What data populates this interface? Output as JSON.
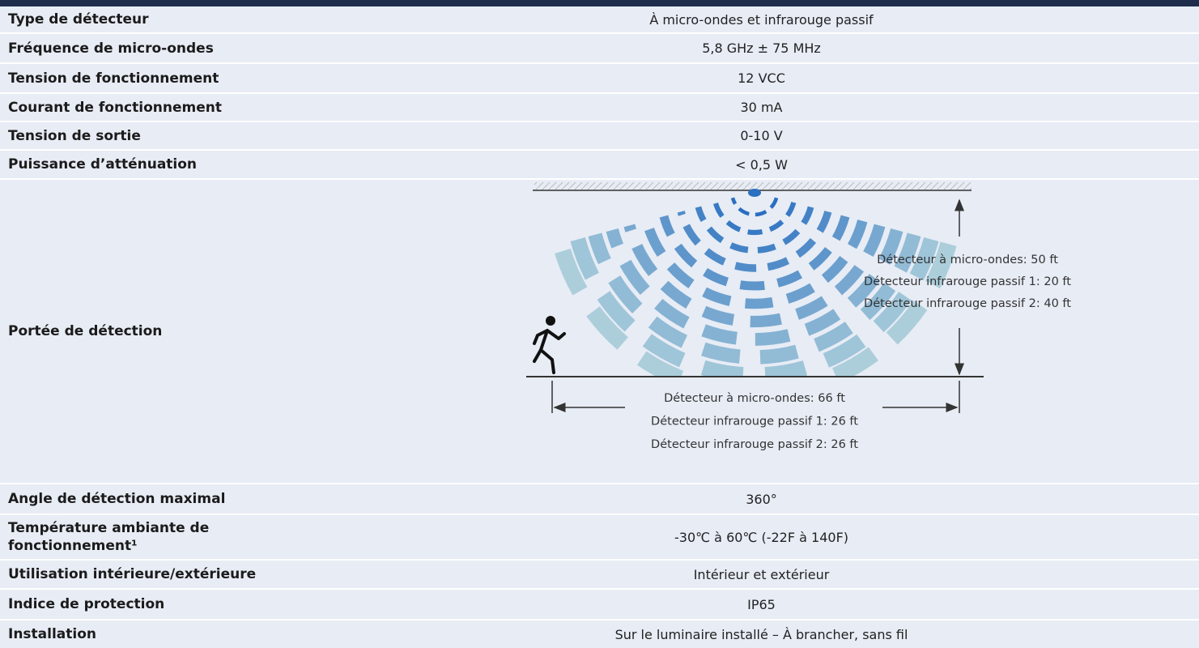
{
  "table": {
    "rows": [
      {
        "label": "Type de détecteur",
        "value": "À micro-ondes et infrarouge passif"
      },
      {
        "label": "Fréquence de micro-ondes",
        "value": "5,8 GHz ± 75 MHz"
      },
      {
        "label": "Tension de fonctionnement",
        "value": "12 VCC"
      },
      {
        "label": "Courant de fonctionnement",
        "value": "30 mA"
      },
      {
        "label": "Tension de sortie",
        "value": "0-10 V"
      },
      {
        "label": "Puissance d’atténuation",
        "value": "< 0,5 W"
      },
      {
        "label": "Portée de détection",
        "diagram": {
          "height_labels": [
            "Détecteur à micro-ondes: 50 ft",
            "Détecteur infrarouge passif 1: 20 ft",
            "Détecteur infrarouge passif 2: 40 ft"
          ],
          "width_labels": [
            "Détecteur à micro-ondes: 66 ft",
            "Détecteur infrarouge passif 1: 26 ft",
            "Détecteur infrarouge passif 2: 26 ft"
          ]
        }
      },
      {
        "label": "Angle de détection maximal",
        "value": "360°"
      },
      {
        "label": "Température ambiante de fonctionnement¹",
        "value": "-30℃ à 60℃ (-22F à 140F)"
      },
      {
        "label": "Utilisation intérieure/extérieure",
        "value": "Intérieur et extérieur"
      },
      {
        "label": "Indice de protection",
        "value": "IP65"
      },
      {
        "label": "Installation",
        "value": "Sur le luminaire installé – À brancher, sans fil"
      }
    ]
  }
}
